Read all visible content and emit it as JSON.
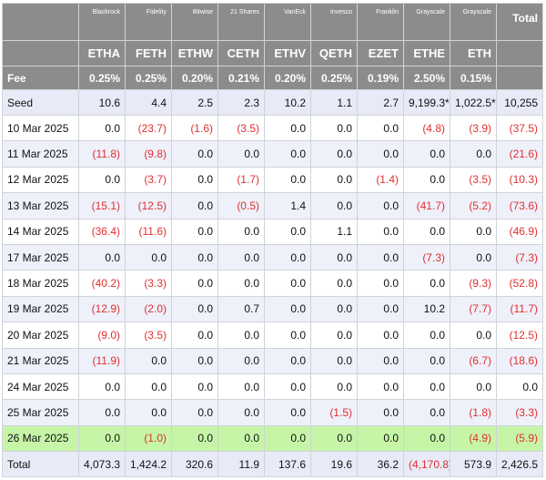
{
  "columns": [
    {
      "issuer": "Blackrock",
      "ticker": "ETHA",
      "fee": "0.25%"
    },
    {
      "issuer": "Fidelity",
      "ticker": "FETH",
      "fee": "0.25%"
    },
    {
      "issuer": "Bitwise",
      "ticker": "ETHW",
      "fee": "0.20%"
    },
    {
      "issuer": "21 Shares",
      "ticker": "CETH",
      "fee": "0.21%"
    },
    {
      "issuer": "VanEck",
      "ticker": "ETHV",
      "fee": "0.20%"
    },
    {
      "issuer": "Invesco",
      "ticker": "QETH",
      "fee": "0.25%"
    },
    {
      "issuer": "Franklin",
      "ticker": "EZET",
      "fee": "0.19%"
    },
    {
      "issuer": "Grayscale",
      "ticker": "ETHE",
      "fee": "2.50%"
    },
    {
      "issuer": "Grayscale",
      "ticker": "ETH",
      "fee": "0.15%"
    }
  ],
  "total_header": "Total",
  "fee_label": "Fee",
  "rows": [
    {
      "label": "Seed",
      "cells": [
        "10.6",
        "4.4",
        "2.5",
        "2.3",
        "10.2",
        "1.1",
        "2.7",
        "9,199.3*",
        "1,022.5*",
        "10,255"
      ],
      "neg": [
        false,
        false,
        false,
        false,
        false,
        false,
        false,
        false,
        false,
        false
      ],
      "style": "seed"
    },
    {
      "label": "10 Mar 2025",
      "cells": [
        "0.0",
        "(23.7)",
        "(1.6)",
        "(3.5)",
        "0.0",
        "0.0",
        "0.0",
        "(4.8)",
        "(3.9)",
        "(37.5)"
      ],
      "neg": [
        false,
        true,
        true,
        true,
        false,
        false,
        false,
        true,
        true,
        true
      ],
      "style": "plain"
    },
    {
      "label": "11 Mar 2025",
      "cells": [
        "(11.8)",
        "(9.8)",
        "0.0",
        "0.0",
        "0.0",
        "0.0",
        "0.0",
        "0.0",
        "0.0",
        "(21.6)"
      ],
      "neg": [
        true,
        true,
        false,
        false,
        false,
        false,
        false,
        false,
        false,
        true
      ],
      "style": "stripe"
    },
    {
      "label": "12 Mar 2025",
      "cells": [
        "0.0",
        "(3.7)",
        "0.0",
        "(1.7)",
        "0.0",
        "0.0",
        "(1.4)",
        "0.0",
        "(3.5)",
        "(10.3)"
      ],
      "neg": [
        false,
        true,
        false,
        true,
        false,
        false,
        true,
        false,
        true,
        true
      ],
      "style": "plain"
    },
    {
      "label": "13 Mar 2025",
      "cells": [
        "(15.1)",
        "(12.5)",
        "0.0",
        "(0.5)",
        "1.4",
        "0.0",
        "0.0",
        "(41.7)",
        "(5.2)",
        "(73.6)"
      ],
      "neg": [
        true,
        true,
        false,
        true,
        false,
        false,
        false,
        true,
        true,
        true
      ],
      "style": "stripe"
    },
    {
      "label": "14 Mar 2025",
      "cells": [
        "(36.4)",
        "(11.6)",
        "0.0",
        "0.0",
        "0.0",
        "1.1",
        "0.0",
        "0.0",
        "0.0",
        "(46.9)"
      ],
      "neg": [
        true,
        true,
        false,
        false,
        false,
        false,
        false,
        false,
        false,
        true
      ],
      "style": "plain"
    },
    {
      "label": "17 Mar 2025",
      "cells": [
        "0.0",
        "0.0",
        "0.0",
        "0.0",
        "0.0",
        "0.0",
        "0.0",
        "(7.3)",
        "0.0",
        "(7.3)"
      ],
      "neg": [
        false,
        false,
        false,
        false,
        false,
        false,
        false,
        true,
        false,
        true
      ],
      "style": "stripe"
    },
    {
      "label": "18 Mar 2025",
      "cells": [
        "(40.2)",
        "(3.3)",
        "0.0",
        "0.0",
        "0.0",
        "0.0",
        "0.0",
        "0.0",
        "(9.3)",
        "(52.8)"
      ],
      "neg": [
        true,
        true,
        false,
        false,
        false,
        false,
        false,
        false,
        true,
        true
      ],
      "style": "plain"
    },
    {
      "label": "19 Mar 2025",
      "cells": [
        "(12.9)",
        "(2.0)",
        "0.0",
        "0.7",
        "0.0",
        "0.0",
        "0.0",
        "10.2",
        "(7.7)",
        "(11.7)"
      ],
      "neg": [
        true,
        true,
        false,
        false,
        false,
        false,
        false,
        false,
        true,
        true
      ],
      "style": "stripe"
    },
    {
      "label": "20 Mar 2025",
      "cells": [
        "(9.0)",
        "(3.5)",
        "0.0",
        "0.0",
        "0.0",
        "0.0",
        "0.0",
        "0.0",
        "0.0",
        "(12.5)"
      ],
      "neg": [
        true,
        true,
        false,
        false,
        false,
        false,
        false,
        false,
        false,
        true
      ],
      "style": "plain"
    },
    {
      "label": "21 Mar 2025",
      "cells": [
        "(11.9)",
        "0.0",
        "0.0",
        "0.0",
        "0.0",
        "0.0",
        "0.0",
        "0.0",
        "(6.7)",
        "(18.6)"
      ],
      "neg": [
        true,
        false,
        false,
        false,
        false,
        false,
        false,
        false,
        true,
        true
      ],
      "style": "stripe"
    },
    {
      "label": "24 Mar 2025",
      "cells": [
        "0.0",
        "0.0",
        "0.0",
        "0.0",
        "0.0",
        "0.0",
        "0.0",
        "0.0",
        "0.0",
        "0.0"
      ],
      "neg": [
        false,
        false,
        false,
        false,
        false,
        false,
        false,
        false,
        false,
        false
      ],
      "style": "plain"
    },
    {
      "label": "25 Mar 2025",
      "cells": [
        "0.0",
        "0.0",
        "0.0",
        "0.0",
        "0.0",
        "(1.5)",
        "0.0",
        "0.0",
        "(1.8)",
        "(3.3)"
      ],
      "neg": [
        false,
        false,
        false,
        false,
        false,
        true,
        false,
        false,
        true,
        true
      ],
      "style": "stripe"
    },
    {
      "label": "26 Mar 2025",
      "cells": [
        "0.0",
        "(1.0)",
        "0.0",
        "0.0",
        "0.0",
        "0.0",
        "0.0",
        "0.0",
        "(4.9)",
        "(5.9)"
      ],
      "neg": [
        false,
        true,
        false,
        false,
        false,
        false,
        false,
        false,
        true,
        true
      ],
      "style": "highlight"
    },
    {
      "label": "Total",
      "cells": [
        "4,073.3",
        "1,424.2",
        "320.6",
        "11.9",
        "137.6",
        "19.6",
        "36.2",
        "(4,170.8)",
        "573.9",
        "2,426.5"
      ],
      "neg": [
        false,
        false,
        false,
        false,
        false,
        false,
        false,
        true,
        false,
        false
      ],
      "style": "total"
    }
  ],
  "colors": {
    "header_bg": "#8c8c8c",
    "stripe_bg": "#eef0fa",
    "highlight_bg": "#c6f5a8",
    "negative": "#e0302e"
  }
}
